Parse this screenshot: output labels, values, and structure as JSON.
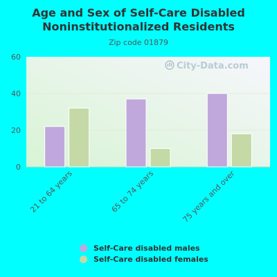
{
  "chart_data": {
    "type": "bar",
    "title": "Age and Sex of Self-Care Disabled Noninstitutionalized Residents",
    "subtitle": "Zip code 01879",
    "categories": [
      "21 to 64 years",
      "65 to 74 years",
      "75 years and over"
    ],
    "series": [
      {
        "name": "Self-Care disabled males",
        "values": [
          22,
          37,
          40
        ],
        "color": "#c0a8dc"
      },
      {
        "name": "Self-Care disabled females",
        "values": [
          32,
          10,
          18
        ],
        "color": "#c4d9a6"
      }
    ],
    "ylim": [
      0,
      60
    ],
    "yticks": [
      0,
      20,
      40,
      60
    ],
    "grid": true,
    "legend_position": "bottom",
    "watermark": "City-Data.com"
  }
}
